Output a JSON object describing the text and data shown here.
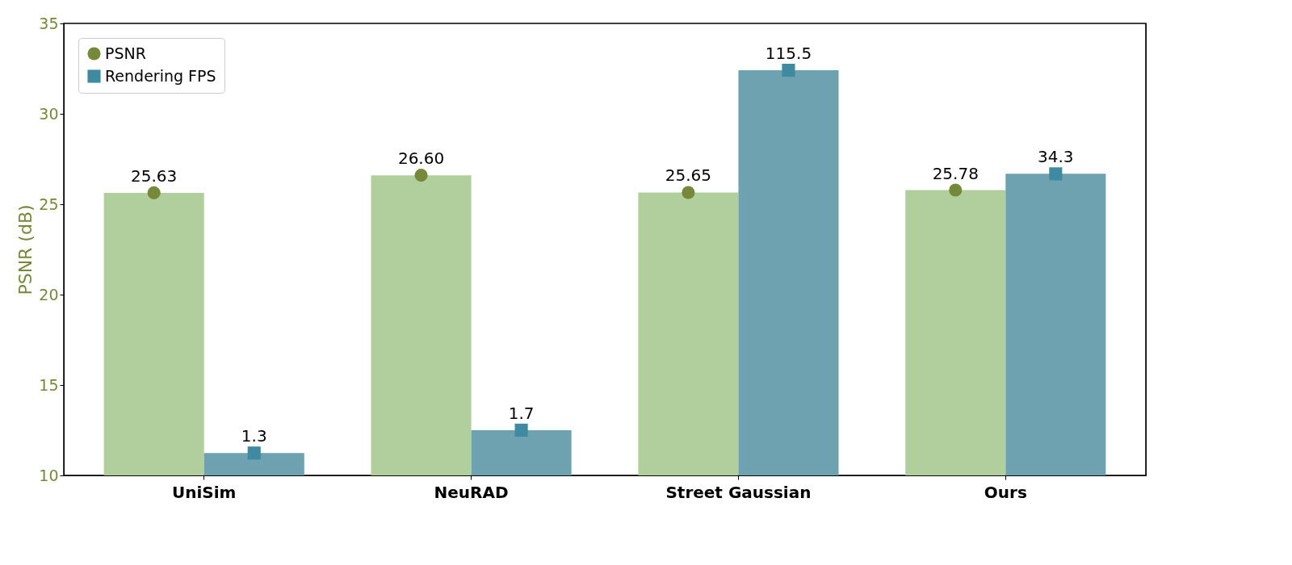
{
  "chart_data": {
    "type": "bar",
    "ylabel": "PSNR (dB)",
    "categories": [
      "UniSim",
      "NeuRAD",
      "Street Gaussian",
      "Ours"
    ],
    "ylim": [
      10,
      35
    ],
    "yticks": [
      10,
      15,
      20,
      25,
      30,
      35
    ],
    "y2lim": [
      1,
      200
    ],
    "log": "y2",
    "legend": "top left",
    "grid": false,
    "series": [
      {
        "color": "#b0cf9c",
        "values": [
          25.63,
          26.6,
          25.65,
          25.78
        ]
      },
      {
        "color": "#6ea2b0",
        "axis": "y2",
        "values": [
          1.3,
          1.7,
          115.5,
          34.3
        ]
      },
      {
        "name": "PSNR",
        "type": "scatter",
        "marker": "circle",
        "color": "#76893a",
        "x": [
          "UniSim",
          "NeuRAD",
          "Street Gaussian",
          "Ours"
        ],
        "values": [
          25.63,
          26.6,
          25.65,
          25.78
        ],
        "value_labels": [
          "25.63",
          "26.60",
          "25.65",
          "25.78"
        ]
      },
      {
        "name": "Rendering FPS",
        "type": "scatter",
        "marker": "square",
        "color": "#3f8aa0",
        "axis": "y2",
        "x": [
          "UniSim",
          "NeuRAD",
          "Street Gaussian",
          "Ours"
        ],
        "values": [
          1.3,
          1.7,
          115.5,
          34.3
        ],
        "value_labels": [
          "1.3",
          "1.7",
          "115.5",
          "34.3"
        ]
      }
    ]
  }
}
